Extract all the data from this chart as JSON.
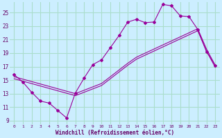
{
  "xlabel": "Windchill (Refroidissement éolien,°C)",
  "bg_color": "#cceeff",
  "grid_color": "#aaddcc",
  "line_color": "#990099",
  "xlim": [
    -0.5,
    23.5
  ],
  "ylim": [
    8.5,
    26.5
  ],
  "yticks": [
    9,
    11,
    13,
    15,
    17,
    19,
    21,
    23,
    25
  ],
  "xticks": [
    0,
    1,
    2,
    3,
    4,
    5,
    6,
    7,
    8,
    9,
    10,
    11,
    12,
    13,
    14,
    15,
    16,
    17,
    18,
    19,
    20,
    21,
    22,
    23
  ],
  "line1_x": [
    0,
    1,
    2,
    3,
    4,
    5,
    6,
    7,
    8,
    9,
    10,
    11,
    12,
    13,
    14,
    15,
    16,
    17,
    18,
    19,
    20,
    21,
    22,
    23
  ],
  "line1_y": [
    15.8,
    14.7,
    13.2,
    11.9,
    11.6,
    10.5,
    9.4,
    13.1,
    15.3,
    17.3,
    18.0,
    19.8,
    21.6,
    23.6,
    24.0,
    23.5,
    23.6,
    26.2,
    26.0,
    24.5,
    24.4,
    22.5,
    19.2,
    17.2
  ],
  "line2_x": [
    0,
    7,
    10,
    11,
    12,
    13,
    14,
    15,
    16,
    17,
    18,
    19,
    20,
    21,
    22,
    23
  ],
  "line2_y": [
    15.5,
    13.0,
    14.5,
    15.5,
    16.5,
    17.5,
    18.4,
    19.0,
    19.6,
    20.2,
    20.8,
    21.4,
    22.0,
    22.6,
    19.6,
    17.2
  ],
  "line3_x": [
    0,
    7,
    10,
    11,
    12,
    13,
    14,
    15,
    16,
    17,
    18,
    19,
    20,
    21,
    22,
    23
  ],
  "line3_y": [
    15.2,
    12.7,
    14.2,
    15.2,
    16.2,
    17.2,
    18.1,
    18.7,
    19.3,
    19.9,
    20.5,
    21.1,
    21.7,
    22.3,
    19.3,
    16.9
  ]
}
